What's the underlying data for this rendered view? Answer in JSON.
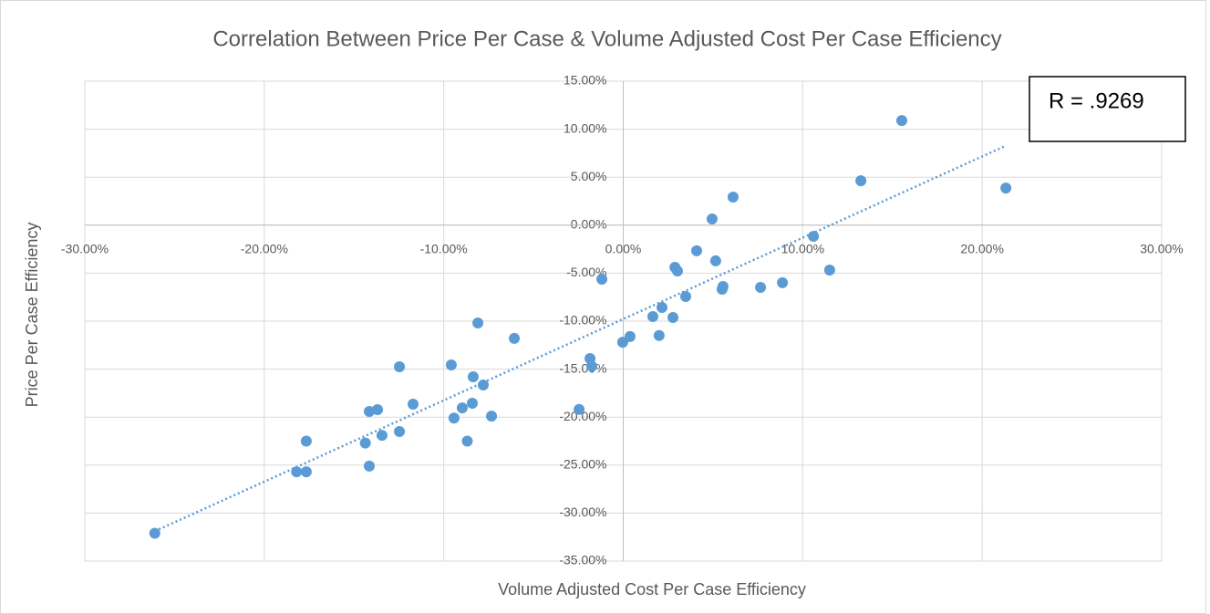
{
  "chart_data": {
    "type": "scatter",
    "title": "Correlation Between Price Per Case & Volume Adjusted Cost Per Case Efficiency",
    "x_label": "Volume Adjusted Cost Per Case Efficiency",
    "y_label": "Price Per Case Efficiency",
    "annotation": "R = .9269",
    "color": "#5b9bd5",
    "trendline": true,
    "grid": true,
    "xlim": [
      -30,
      30
    ],
    "ylim": [
      -35,
      15
    ],
    "xticks": [
      {
        "value": -30,
        "label": "-30.00%"
      },
      {
        "value": -20,
        "label": "-20.00%"
      },
      {
        "value": -10,
        "label": "-10.00%"
      },
      {
        "value": 0,
        "label": "0.00%"
      },
      {
        "value": 10,
        "label": "10.00%"
      },
      {
        "value": 20,
        "label": "20.00%"
      },
      {
        "value": 30,
        "label": "30.00%"
      }
    ],
    "yticks": [
      {
        "value": 15,
        "label": "15.00%"
      },
      {
        "value": 10,
        "label": "10.00%"
      },
      {
        "value": 5,
        "label": "5.00%"
      },
      {
        "value": 0,
        "label": "0.00%"
      },
      {
        "value": -5,
        "label": "-5.00%"
      },
      {
        "value": -10,
        "label": "-10.00%"
      },
      {
        "value": -15,
        "label": "-15.00%"
      },
      {
        "value": -20,
        "label": "-20.00%"
      },
      {
        "value": -25,
        "label": "-25.00%"
      },
      {
        "value": -30,
        "label": "-30.00%"
      },
      {
        "value": -35,
        "label": "-35.00%"
      }
    ],
    "x": [
      15.52,
      13.24,
      21.32,
      6.12,
      4.95,
      10.6,
      4.09,
      5.15,
      2.88,
      3.02,
      11.5,
      -1.19,
      8.87,
      7.65,
      5.56,
      5.51,
      3.48,
      2.16,
      1.65,
      2.77,
      -8.1,
      -6.07,
      2.0,
      0.38,
      -0.03,
      -1.85,
      -1.75,
      -12.47,
      -9.58,
      -8.36,
      -7.8,
      -11.71,
      -8.41,
      -8.97,
      -2.46,
      -13.69,
      -14.15,
      -7.34,
      -9.43,
      -12.47,
      -13.44,
      -17.66,
      -14.37,
      -8.69,
      -14.15,
      -18.2,
      -17.66,
      -26.1
    ],
    "values": [
      10.9,
      4.63,
      3.87,
      2.93,
      0.65,
      -1.16,
      -2.67,
      -3.72,
      -4.39,
      -4.77,
      -4.68,
      -5.63,
      -6.0,
      -6.48,
      -6.39,
      -6.67,
      -7.43,
      -8.57,
      -9.52,
      -9.62,
      -10.19,
      -11.8,
      -11.5,
      -11.6,
      -12.2,
      -13.9,
      -14.7,
      -14.75,
      -14.56,
      -15.8,
      -16.65,
      -18.65,
      -18.56,
      -19.04,
      -19.2,
      -19.22,
      -19.41,
      -19.9,
      -20.1,
      -21.5,
      -21.9,
      -22.5,
      -22.7,
      -22.5,
      -25.1,
      -25.7,
      -25.7,
      -32.1
    ]
  }
}
